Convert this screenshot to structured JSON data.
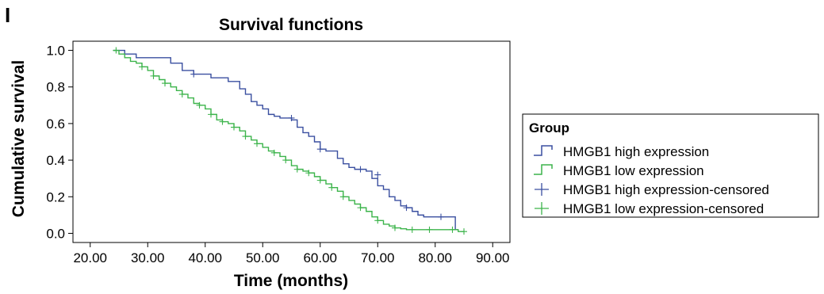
{
  "panel_label": "I",
  "chart_data": {
    "type": "line",
    "subtype": "kaplan-meier step",
    "title": "Survival functions",
    "xlabel": "Time (months)",
    "ylabel": "Cumulative survival",
    "xlim": [
      17,
      93
    ],
    "ylim": [
      -0.05,
      1.05
    ],
    "xticks": [
      20,
      30,
      40,
      50,
      60,
      70,
      80,
      90
    ],
    "xtick_labels": [
      "20.00",
      "30.00",
      "40.00",
      "50.00",
      "60.00",
      "70.00",
      "80.00",
      "90.00"
    ],
    "yticks": [
      0,
      0.2,
      0.4,
      0.6,
      0.8,
      1.0
    ],
    "ytick_labels": [
      "0.0",
      "0.2",
      "0.4",
      "0.6",
      "0.8",
      "1.0"
    ],
    "grid": false,
    "legend_position": "right",
    "legend": {
      "title": "Group",
      "entries": [
        {
          "label": "HMGB1 high expression",
          "marker": "step",
          "color": "#3a4fa0"
        },
        {
          "label": "HMGB1 low expression",
          "marker": "step",
          "color": "#3cb44b"
        },
        {
          "label": "HMGB1 high expression-censored",
          "marker": "plus",
          "color": "#3a4fa0"
        },
        {
          "label": "HMGB1 low expression-censored",
          "marker": "plus",
          "color": "#3cb44b"
        }
      ]
    },
    "series": [
      {
        "name": "HMGB1 high expression",
        "color": "#3a4fa0",
        "x": [
          24,
          26,
          28,
          34,
          36,
          38,
          41,
          44,
          46,
          47,
          48,
          49,
          50,
          51,
          52,
          53,
          54,
          55,
          56,
          57,
          58,
          59,
          60,
          61,
          62,
          63,
          64,
          65,
          66,
          67,
          68,
          69,
          70,
          71,
          72,
          73,
          74,
          75,
          76,
          77,
          78,
          83.5,
          84
        ],
        "y": [
          1.0,
          0.98,
          0.96,
          0.93,
          0.89,
          0.87,
          0.85,
          0.83,
          0.79,
          0.76,
          0.72,
          0.7,
          0.68,
          0.65,
          0.64,
          0.63,
          0.63,
          0.62,
          0.58,
          0.55,
          0.53,
          0.5,
          0.46,
          0.45,
          0.45,
          0.41,
          0.38,
          0.36,
          0.35,
          0.35,
          0.34,
          0.3,
          0.26,
          0.24,
          0.2,
          0.18,
          0.15,
          0.14,
          0.12,
          0.1,
          0.09,
          0.02,
          0.02
        ],
        "censored_x": [
          38,
          55,
          60,
          67,
          70,
          75,
          81
        ],
        "censored_y": [
          0.87,
          0.63,
          0.46,
          0.35,
          0.32,
          0.14,
          0.09
        ]
      },
      {
        "name": "HMGB1 low expression",
        "color": "#3cb44b",
        "x": [
          24,
          25,
          26,
          27,
          28,
          29,
          30,
          31,
          32,
          33,
          34,
          35,
          36,
          37,
          38,
          39,
          40,
          41,
          42,
          43,
          44,
          45,
          46,
          47,
          48,
          49,
          50,
          51,
          52,
          53,
          54,
          55,
          56,
          57,
          58,
          59,
          60,
          61,
          62,
          63,
          64,
          65,
          66,
          67,
          68,
          69,
          70,
          71,
          72,
          73,
          74,
          75,
          80,
          82,
          84,
          85
        ],
        "y": [
          1.0,
          0.98,
          0.96,
          0.94,
          0.93,
          0.91,
          0.89,
          0.86,
          0.84,
          0.82,
          0.8,
          0.78,
          0.76,
          0.74,
          0.71,
          0.7,
          0.68,
          0.65,
          0.62,
          0.61,
          0.6,
          0.58,
          0.56,
          0.53,
          0.51,
          0.49,
          0.47,
          0.45,
          0.44,
          0.42,
          0.4,
          0.37,
          0.35,
          0.34,
          0.33,
          0.31,
          0.29,
          0.27,
          0.25,
          0.23,
          0.2,
          0.18,
          0.16,
          0.14,
          0.12,
          0.09,
          0.07,
          0.05,
          0.04,
          0.03,
          0.025,
          0.02,
          0.02,
          0.02,
          0.01,
          0.01
        ],
        "censored_x": [
          24.5,
          29,
          31,
          33,
          36,
          39,
          41,
          43,
          45,
          47,
          49,
          52,
          54,
          56,
          58,
          60,
          62,
          64,
          67,
          70,
          73,
          76,
          79,
          83,
          85
        ],
        "censored_y": [
          1.0,
          0.91,
          0.86,
          0.82,
          0.76,
          0.7,
          0.65,
          0.61,
          0.58,
          0.53,
          0.49,
          0.44,
          0.4,
          0.35,
          0.33,
          0.29,
          0.25,
          0.2,
          0.14,
          0.07,
          0.03,
          0.02,
          0.02,
          0.02,
          0.01
        ]
      }
    ]
  }
}
